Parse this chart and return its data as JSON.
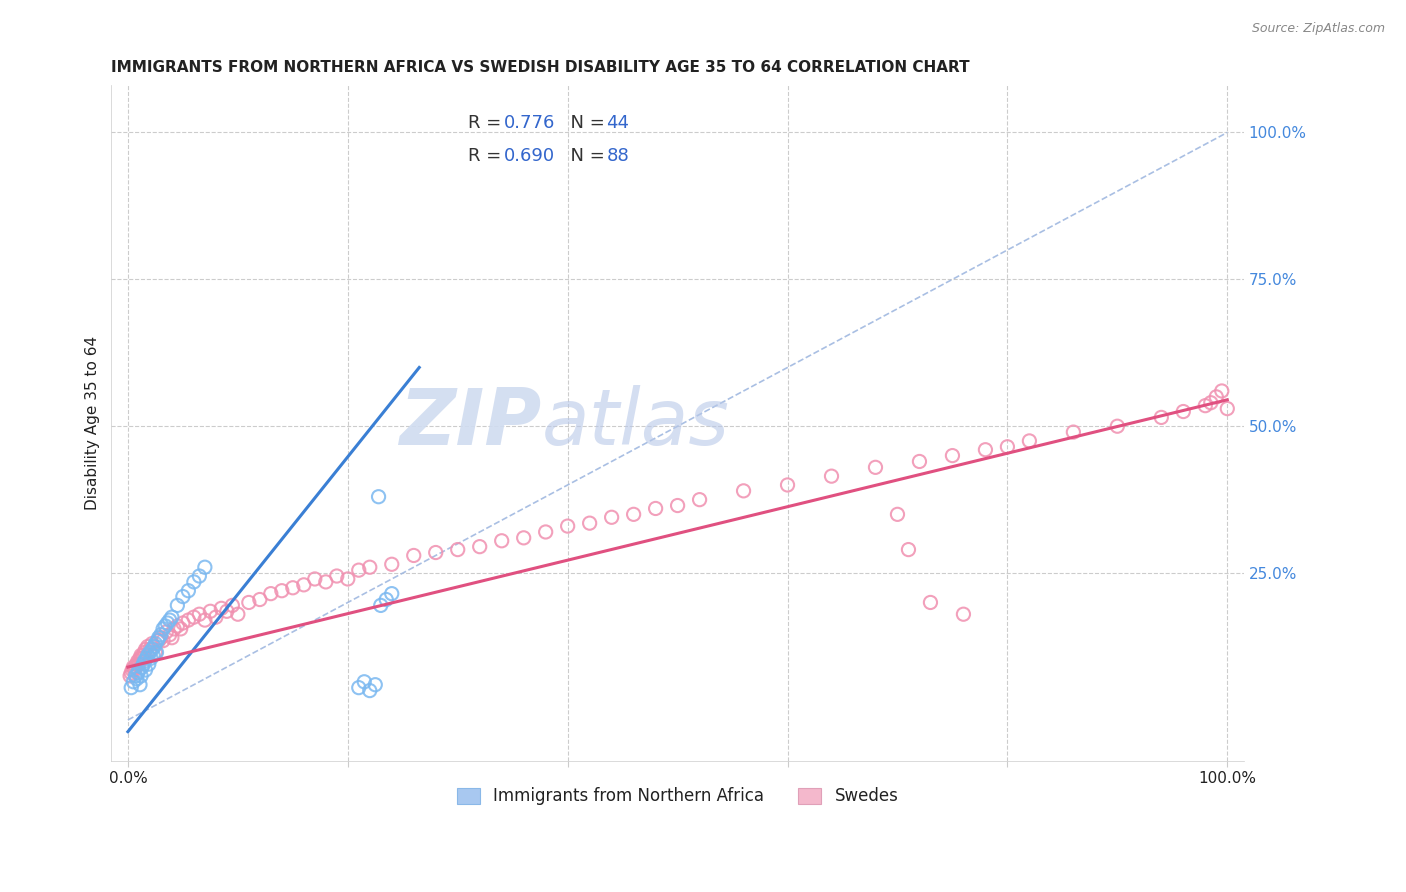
{
  "title": "IMMIGRANTS FROM NORTHERN AFRICA VS SWEDISH DISABILITY AGE 35 TO 64 CORRELATION CHART",
  "source": "Source: ZipAtlas.com",
  "ylabel": "Disability Age 35 to 64",
  "watermark_zip": "ZIP",
  "watermark_atlas": "atlas",
  "blue_r": "0.776",
  "blue_n": "44",
  "pink_r": "0.690",
  "pink_n": "88",
  "legend_label_blue": "Immigrants from Northern Africa",
  "legend_label_pink": "Swedes",
  "blue_scatter_x": [
    0.003,
    0.005,
    0.007,
    0.008,
    0.009,
    0.01,
    0.011,
    0.012,
    0.013,
    0.014,
    0.015,
    0.016,
    0.017,
    0.018,
    0.019,
    0.02,
    0.021,
    0.022,
    0.023,
    0.024,
    0.025,
    0.026,
    0.027,
    0.028,
    0.03,
    0.032,
    0.034,
    0.036,
    0.038,
    0.04,
    0.045,
    0.05,
    0.055,
    0.06,
    0.065,
    0.07,
    0.21,
    0.215,
    0.22,
    0.225,
    0.228,
    0.23,
    0.235,
    0.24
  ],
  "blue_scatter_y": [
    0.055,
    0.065,
    0.075,
    0.07,
    0.08,
    0.085,
    0.06,
    0.075,
    0.09,
    0.095,
    0.1,
    0.085,
    0.105,
    0.11,
    0.095,
    0.115,
    0.105,
    0.12,
    0.11,
    0.125,
    0.13,
    0.115,
    0.135,
    0.14,
    0.145,
    0.155,
    0.16,
    0.165,
    0.17,
    0.175,
    0.195,
    0.21,
    0.22,
    0.235,
    0.245,
    0.26,
    0.055,
    0.065,
    0.05,
    0.06,
    0.38,
    0.195,
    0.205,
    0.215
  ],
  "pink_scatter_x": [
    0.002,
    0.003,
    0.004,
    0.005,
    0.006,
    0.007,
    0.008,
    0.009,
    0.01,
    0.011,
    0.012,
    0.013,
    0.014,
    0.015,
    0.016,
    0.018,
    0.02,
    0.022,
    0.025,
    0.028,
    0.03,
    0.032,
    0.035,
    0.038,
    0.04,
    0.042,
    0.045,
    0.048,
    0.05,
    0.055,
    0.06,
    0.065,
    0.07,
    0.075,
    0.08,
    0.085,
    0.09,
    0.095,
    0.1,
    0.11,
    0.12,
    0.13,
    0.14,
    0.15,
    0.16,
    0.17,
    0.18,
    0.19,
    0.2,
    0.21,
    0.22,
    0.24,
    0.26,
    0.28,
    0.3,
    0.32,
    0.34,
    0.36,
    0.38,
    0.4,
    0.42,
    0.44,
    0.46,
    0.48,
    0.5,
    0.52,
    0.56,
    0.6,
    0.64,
    0.68,
    0.72,
    0.75,
    0.78,
    0.8,
    0.82,
    0.86,
    0.9,
    0.94,
    0.96,
    0.98,
    0.985,
    0.99,
    0.995,
    1.0,
    0.7,
    0.71,
    0.73,
    0.76
  ],
  "pink_scatter_y": [
    0.075,
    0.08,
    0.085,
    0.09,
    0.085,
    0.09,
    0.095,
    0.1,
    0.095,
    0.105,
    0.11,
    0.105,
    0.11,
    0.115,
    0.12,
    0.125,
    0.12,
    0.13,
    0.115,
    0.135,
    0.14,
    0.135,
    0.15,
    0.145,
    0.14,
    0.155,
    0.16,
    0.155,
    0.165,
    0.17,
    0.175,
    0.18,
    0.17,
    0.185,
    0.175,
    0.19,
    0.185,
    0.195,
    0.18,
    0.2,
    0.205,
    0.215,
    0.22,
    0.225,
    0.23,
    0.24,
    0.235,
    0.245,
    0.24,
    0.255,
    0.26,
    0.265,
    0.28,
    0.285,
    0.29,
    0.295,
    0.305,
    0.31,
    0.32,
    0.33,
    0.335,
    0.345,
    0.35,
    0.36,
    0.365,
    0.375,
    0.39,
    0.4,
    0.415,
    0.43,
    0.44,
    0.45,
    0.46,
    0.465,
    0.475,
    0.49,
    0.5,
    0.515,
    0.525,
    0.535,
    0.54,
    0.55,
    0.56,
    0.53,
    0.35,
    0.29,
    0.2,
    0.18
  ],
  "blue_line_x": [
    0.0,
    0.265
  ],
  "blue_line_y": [
    -0.02,
    0.6
  ],
  "pink_line_x": [
    0.0,
    1.0
  ],
  "pink_line_y": [
    0.09,
    0.545
  ],
  "diag_line_x": [
    0.0,
    1.0
  ],
  "diag_line_y": [
    0.0,
    1.0
  ],
  "xlim": [
    -0.015,
    1.015
  ],
  "ylim": [
    -0.07,
    1.08
  ],
  "xtick_positions": [
    0.0,
    0.2,
    0.4,
    0.6,
    0.8,
    1.0
  ],
  "ytick_right_positions": [
    0.25,
    0.5,
    0.75,
    1.0
  ],
  "background_color": "#ffffff",
  "grid_color": "#cccccc",
  "blue_dot_color": "#7ab8f0",
  "blue_dot_edge": "#7ab8f0",
  "pink_dot_color": "#f090b0",
  "pink_dot_edge": "#f090b0",
  "blue_line_color": "#3a7fd4",
  "pink_line_color": "#e05080",
  "diag_line_color": "#a0b8e0",
  "blue_fill": "#a8c8f0",
  "pink_fill": "#f4b8cc",
  "right_tick_color": "#4488dd",
  "text_color": "#222222"
}
